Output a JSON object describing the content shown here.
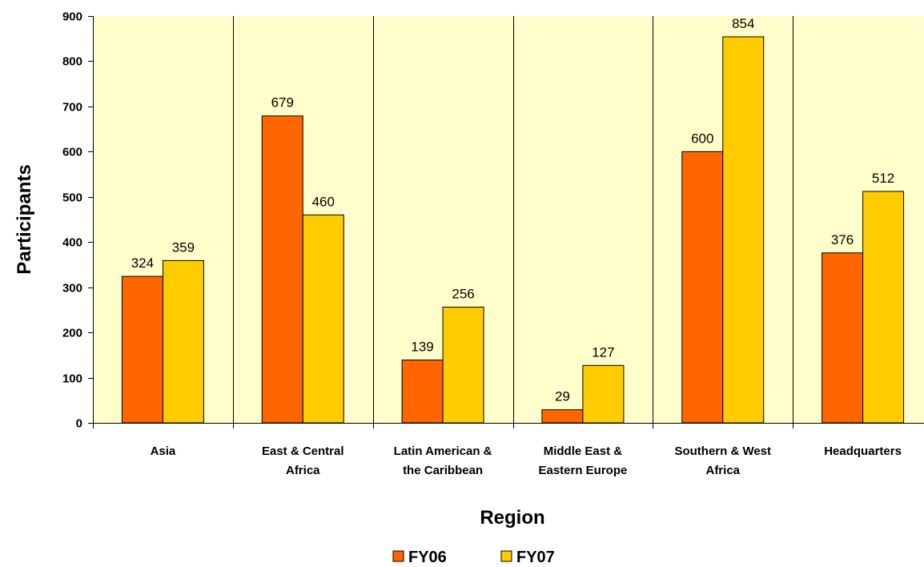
{
  "chart_data": {
    "type": "bar",
    "xlabel": "Region",
    "ylabel": "Participants",
    "ylim": [
      0,
      900
    ],
    "ytick_step": 100,
    "yticks": [
      "0",
      "100",
      "200",
      "300",
      "400",
      "500",
      "600",
      "700",
      "800",
      "900"
    ],
    "grid": false,
    "legend_position": "bottom",
    "plot_background": "#FFFFCC",
    "categories": [
      [
        "Asia"
      ],
      [
        "East & Central",
        "Africa"
      ],
      [
        "Latin American &",
        "the Caribbean"
      ],
      [
        "Middle East &",
        "Eastern Europe"
      ],
      [
        "Southern & West",
        "Africa"
      ],
      [
        "Headquarters"
      ]
    ],
    "series": [
      {
        "name": "FY06",
        "color": "#FF6600",
        "values": [
          324,
          679,
          139,
          29,
          600,
          376
        ]
      },
      {
        "name": "FY07",
        "color": "#FFCC00",
        "values": [
          359,
          460,
          256,
          127,
          854,
          512
        ]
      }
    ]
  }
}
